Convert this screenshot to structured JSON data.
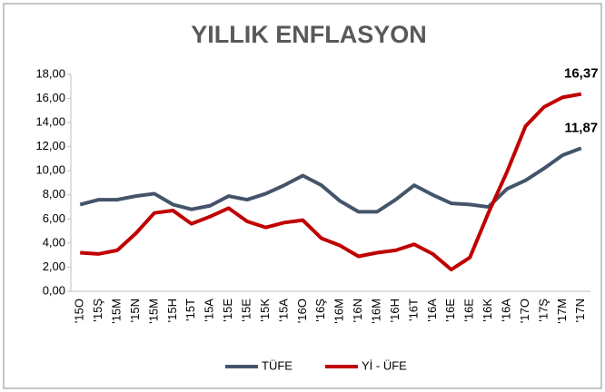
{
  "chart_data": {
    "type": "line",
    "title": "YILLIK ENFLASYON",
    "categories": [
      "'15O",
      "'15Ş",
      "'15M",
      "'15N",
      "'15M",
      "'15H",
      "'15T",
      "'15A",
      "'15E",
      "'15E",
      "'15K",
      "'15A",
      "'16O",
      "'16Ş",
      "'16M",
      "'16N",
      "'16M",
      "'16H",
      "'16T",
      "'16A",
      "'16E",
      "'16E",
      "'16K",
      "'16A",
      "'17O",
      "'17Ş",
      "'17M",
      "'17N"
    ],
    "series": [
      {
        "name": "TÜFE",
        "color": "#44546a",
        "values": [
          7.2,
          7.6,
          7.6,
          7.9,
          8.1,
          7.2,
          6.8,
          7.1,
          7.9,
          7.6,
          8.1,
          8.8,
          9.6,
          8.8,
          7.5,
          6.6,
          6.6,
          7.6,
          8.8,
          8.0,
          7.3,
          7.2,
          7.0,
          8.5,
          9.2,
          10.2,
          11.3,
          11.87
        ],
        "value_labels": [
          null,
          null,
          null,
          null,
          null,
          null,
          null,
          null,
          null,
          null,
          null,
          null,
          null,
          null,
          null,
          null,
          null,
          null,
          null,
          null,
          null,
          null,
          null,
          null,
          null,
          null,
          null,
          "11,87"
        ]
      },
      {
        "name": "Yİ - ÜFE",
        "color": "#c00000",
        "values": [
          3.2,
          3.1,
          3.4,
          4.8,
          6.5,
          6.7,
          5.6,
          6.2,
          6.9,
          5.8,
          5.3,
          5.7,
          5.9,
          4.4,
          3.8,
          2.9,
          3.2,
          3.4,
          3.9,
          3.1,
          1.8,
          2.8,
          6.5,
          9.9,
          13.7,
          15.3,
          16.1,
          16.37
        ],
        "value_labels": [
          null,
          null,
          null,
          null,
          null,
          null,
          null,
          null,
          null,
          null,
          null,
          null,
          null,
          null,
          null,
          null,
          null,
          null,
          null,
          null,
          null,
          null,
          null,
          null,
          null,
          null,
          null,
          "16,37"
        ]
      }
    ],
    "ylim": [
      0,
      18
    ],
    "yticks": [
      {
        "value": 0,
        "label": "0,00"
      },
      {
        "value": 2,
        "label": "2,00"
      },
      {
        "value": 4,
        "label": "4,00"
      },
      {
        "value": 6,
        "label": "6,00"
      },
      {
        "value": 8,
        "label": "8,00"
      },
      {
        "value": 10,
        "label": "10,00"
      },
      {
        "value": 12,
        "label": "12,00"
      },
      {
        "value": 14,
        "label": "14,00"
      },
      {
        "value": 16,
        "label": "16,00"
      },
      {
        "value": 18,
        "label": "18,00"
      }
    ],
    "legend": "bottom"
  }
}
